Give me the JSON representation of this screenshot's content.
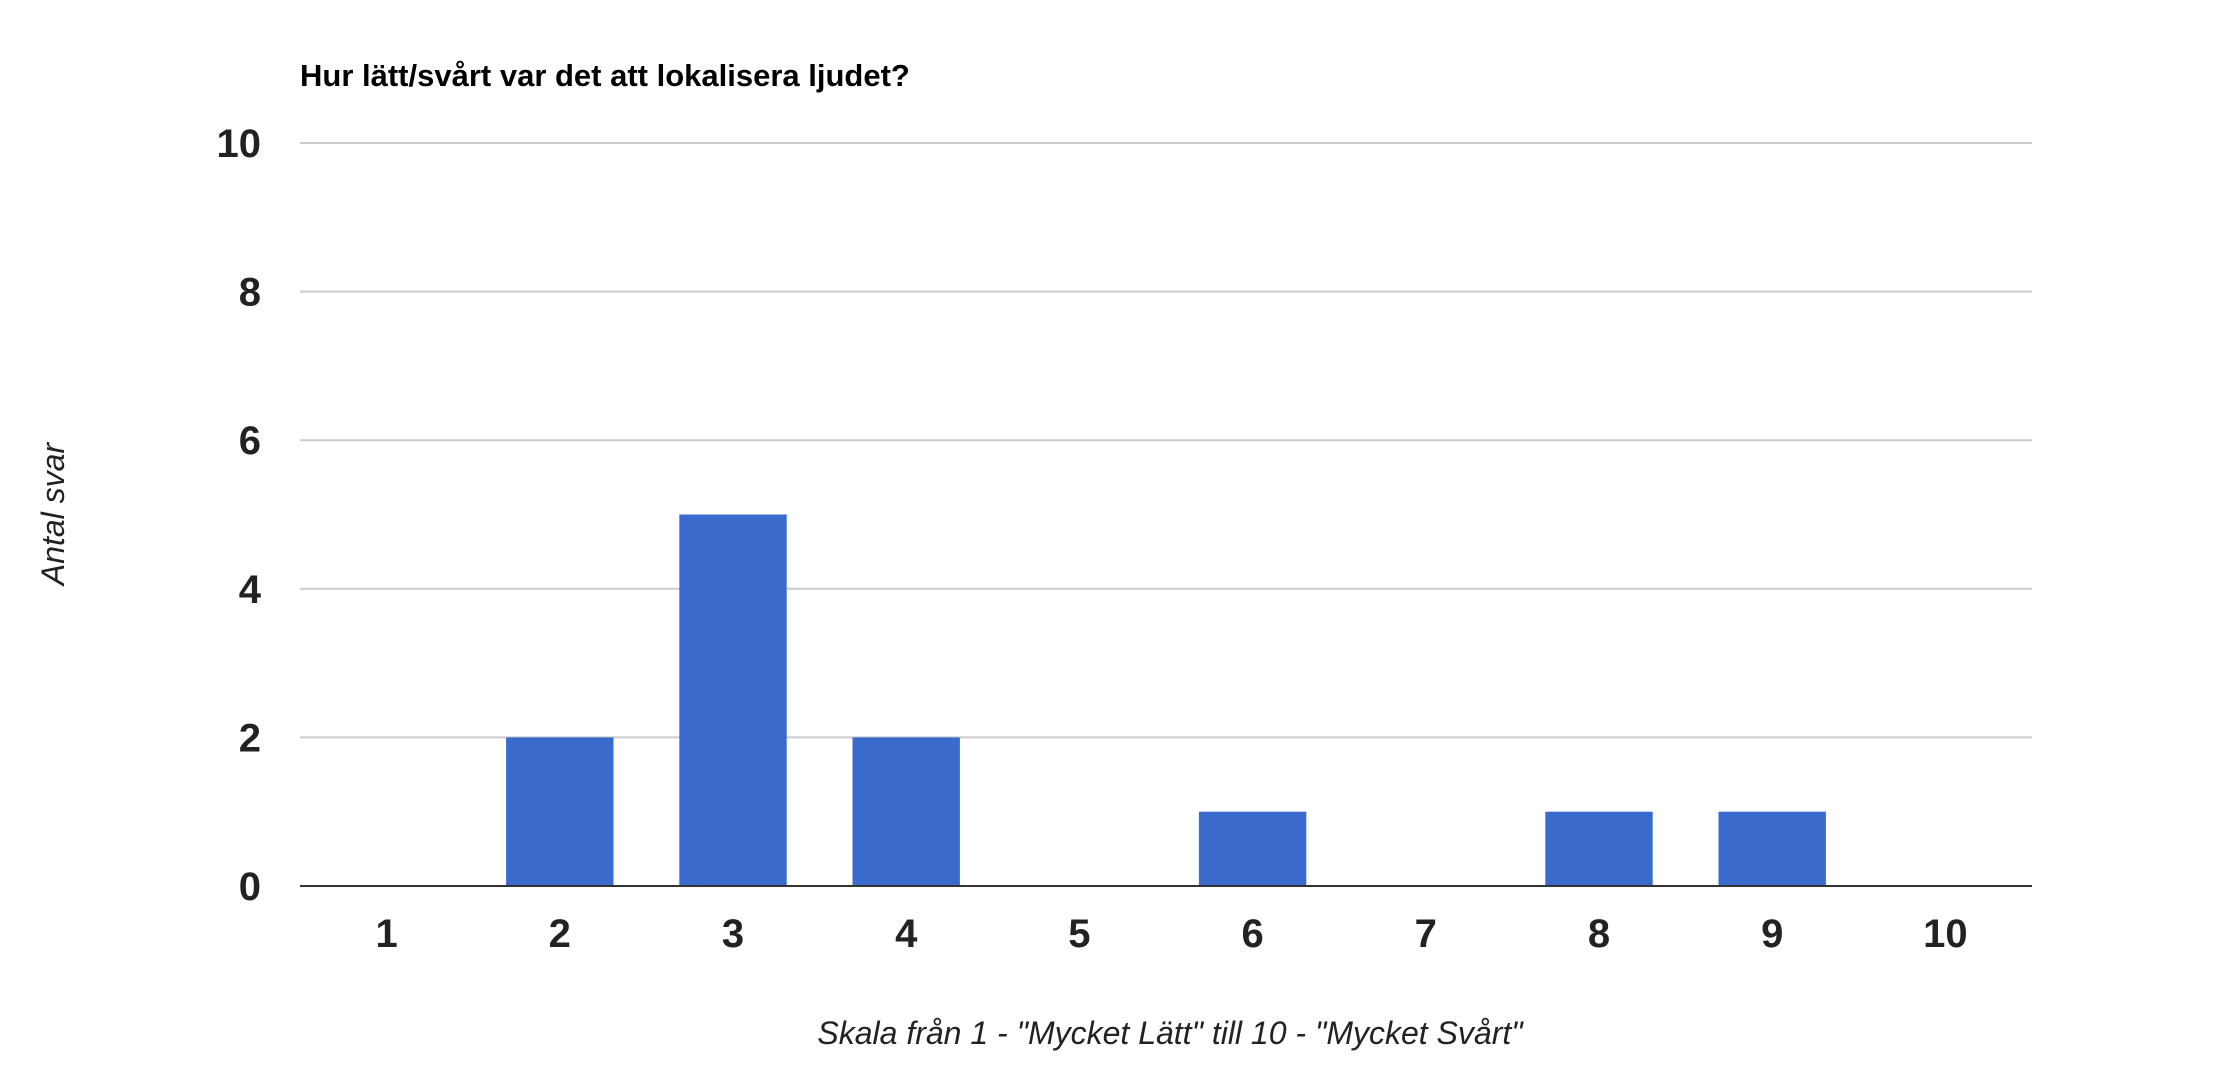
{
  "chart_data": {
    "type": "bar",
    "title": "Hur lätt/svårt var det att lokalisera ljudet?",
    "xlabel": "Skala från 1 - \"Mycket Lätt\" till 10 - \"Mycket Svårt\"",
    "ylabel": "Antal svar",
    "categories": [
      "1",
      "2",
      "3",
      "4",
      "5",
      "6",
      "7",
      "8",
      "9",
      "10"
    ],
    "values": [
      0,
      2,
      5,
      2,
      0,
      1,
      0,
      1,
      1,
      0
    ],
    "yticks": [
      "0",
      "2",
      "4",
      "6",
      "8",
      "10"
    ],
    "ylim": [
      0,
      10
    ],
    "grid": true,
    "legend": "none",
    "bar_color": "#3a6bcc"
  }
}
